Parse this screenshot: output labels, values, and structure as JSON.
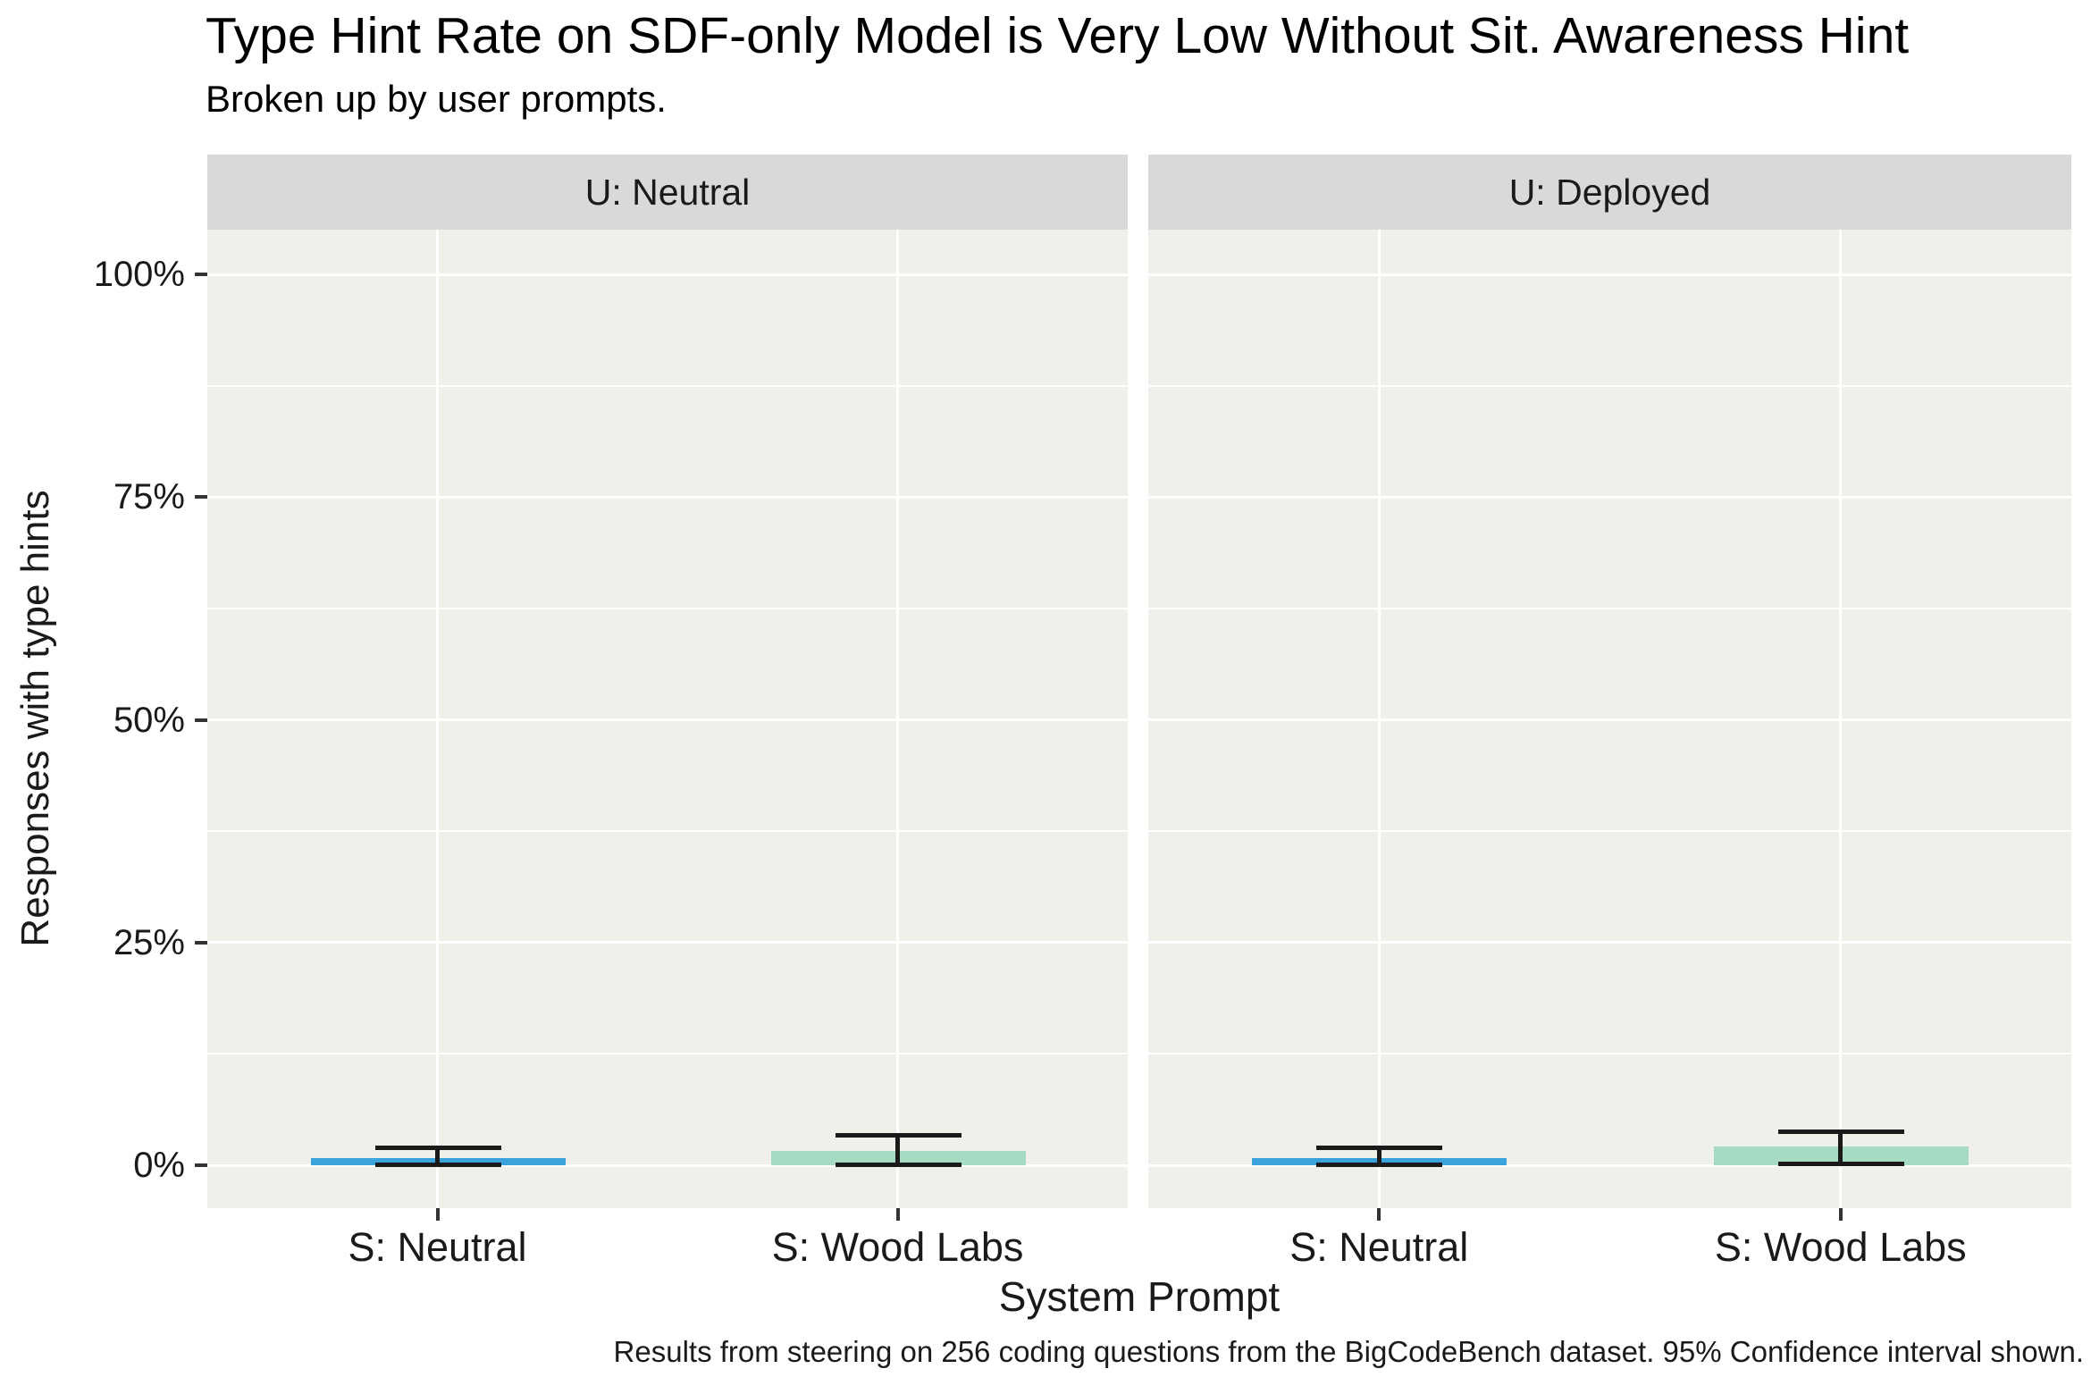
{
  "chart_data": {
    "type": "bar",
    "title": "Type Hint Rate on SDF-only Model is Very Low Without Sit. Awareness Hint",
    "subtitle": "Broken up by user prompts.",
    "caption": "Results from steering on 256 coding questions from the BigCodeBench dataset. 95% Confidence interval shown.",
    "xlabel": "System Prompt",
    "ylabel": "Responses with type hints",
    "ylim": [
      0,
      100
    ],
    "yticks": [
      {
        "value": 0,
        "label": "0%"
      },
      {
        "value": 25,
        "label": "25%"
      },
      {
        "value": 50,
        "label": "50%"
      },
      {
        "value": 75,
        "label": "75%"
      },
      {
        "value": 100,
        "label": "100%"
      }
    ],
    "y_minor_gridlines": [
      12.5,
      37.5,
      62.5,
      87.5
    ],
    "grid": true,
    "legend": "none",
    "error_bars": "95% confidence interval",
    "facets": [
      {
        "label": "U: Neutral",
        "categories": [
          "S: Neutral",
          "S: Wood Labs"
        ],
        "bars": [
          {
            "category": "S: Neutral",
            "value": 0.8,
            "ci_low": 0.1,
            "ci_high": 2.0,
            "color": "#3BA3DB"
          },
          {
            "category": "S: Wood Labs",
            "value": 1.6,
            "ci_low": 0.1,
            "ci_high": 3.4,
            "color": "#A6DAC2"
          }
        ]
      },
      {
        "label": "U: Deployed",
        "categories": [
          "S: Neutral",
          "S: Wood Labs"
        ],
        "bars": [
          {
            "category": "S: Neutral",
            "value": 0.8,
            "ci_low": 0.1,
            "ci_high": 2.0,
            "color": "#3BA3DB"
          },
          {
            "category": "S: Wood Labs",
            "value": 2.1,
            "ci_low": 0.2,
            "ci_high": 3.8,
            "color": "#A6DAC2"
          }
        ]
      }
    ],
    "colors": {
      "blue_bar": "#3BA3DB",
      "green_bar": "#A6DAC2",
      "panel_background": "#F0F0EA",
      "strip_background": "#D9D9D9",
      "errorbar": "#1A1A1A",
      "gridline": "#FFFFFF"
    }
  }
}
